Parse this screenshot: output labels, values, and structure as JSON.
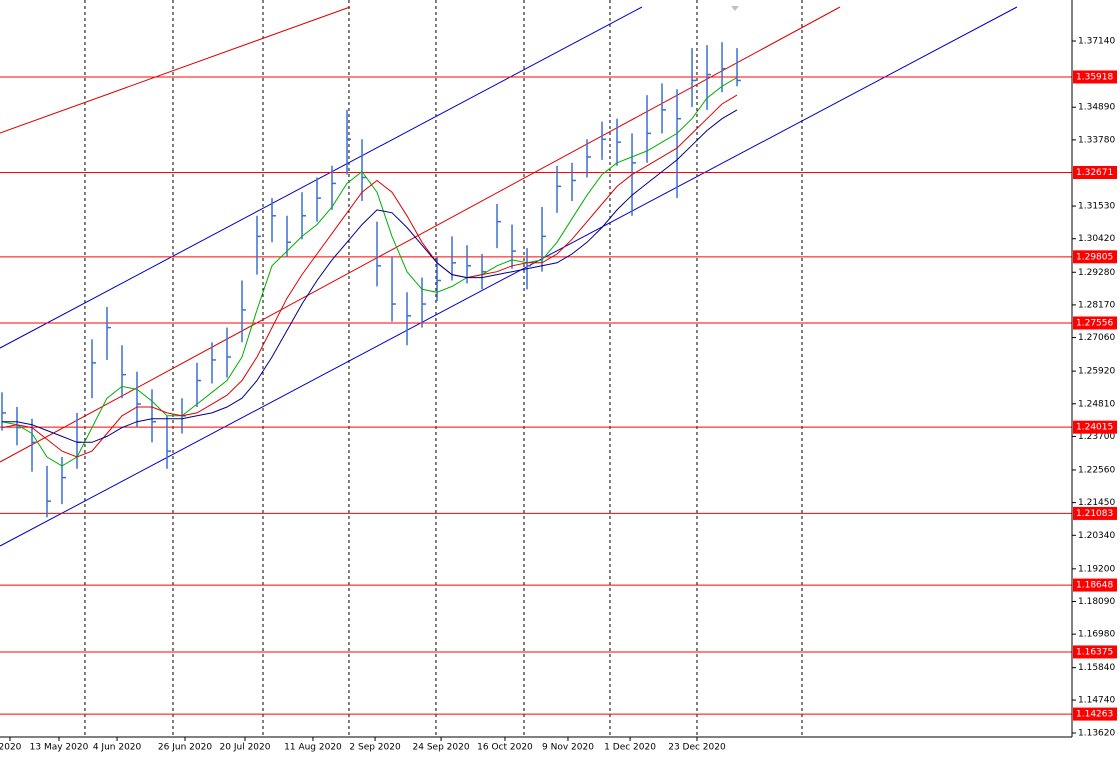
{
  "chart_data": {
    "type": "ohlc",
    "ylim": [
      1.13484,
      1.38534
    ],
    "xlim": [
      -0.133,
      71.33
    ],
    "yticks": [
      {
        "value": 1.3714,
        "label": "1.37140"
      },
      {
        "value": 1.3489,
        "label": "1.34890"
      },
      {
        "value": 1.3378,
        "label": "1.33780"
      },
      {
        "value": 1.3153,
        "label": "1.31530"
      },
      {
        "value": 1.3042,
        "label": "1.30420"
      },
      {
        "value": 1.2928,
        "label": "1.29280"
      },
      {
        "value": 1.2817,
        "label": "1.28170"
      },
      {
        "value": 1.2706,
        "label": "1.27060"
      },
      {
        "value": 1.2592,
        "label": "1.25920"
      },
      {
        "value": 1.2481,
        "label": "1.24810"
      },
      {
        "value": 1.237,
        "label": "1.23700"
      },
      {
        "value": 1.2256,
        "label": "1.22560"
      },
      {
        "value": 1.2145,
        "label": "1.21450"
      },
      {
        "value": 1.2034,
        "label": "1.20340"
      },
      {
        "value": 1.192,
        "label": "1.19200"
      },
      {
        "value": 1.1809,
        "label": "1.18090"
      },
      {
        "value": 1.1698,
        "label": "1.16980"
      },
      {
        "value": 1.1584,
        "label": "1.15840"
      },
      {
        "value": 1.1474,
        "label": "1.14740"
      },
      {
        "value": 1.1362,
        "label": "1.13620"
      }
    ],
    "xticks": [
      {
        "value": 0.53,
        "label": "2020"
      },
      {
        "value": 3.8,
        "label": "13 May 2020"
      },
      {
        "value": 7.67,
        "label": "4 Jun 2020"
      },
      {
        "value": 12.2,
        "label": "26 Jun 2020"
      },
      {
        "value": 16.2,
        "label": "20 Jul 2020"
      },
      {
        "value": 20.73,
        "label": "11 Aug 2020"
      },
      {
        "value": 24.87,
        "label": "2 Sep 2020"
      },
      {
        "value": 29.27,
        "label": "24 Sep 2020"
      },
      {
        "value": 33.53,
        "label": "16 Oct 2020"
      },
      {
        "value": 37.73,
        "label": "9 Nov 2020"
      },
      {
        "value": 41.87,
        "label": "1 Dec 2020"
      },
      {
        "value": 46.33,
        "label": "23 Dec 2020"
      }
    ],
    "xgrid": [
      5.53,
      11.4,
      17.4,
      23.13,
      28.93,
      34.8,
      40.53,
      46.33,
      53.33
    ],
    "bars": {
      "color": "#3b6fd4",
      "high": [
        1.252,
        1.247,
        1.243,
        1.227,
        1.23,
        1.245,
        1.27,
        1.281,
        1.268,
        1.259,
        1.253,
        1.244,
        1.25,
        1.262,
        1.269,
        1.274,
        1.29,
        1.312,
        1.318,
        1.312,
        1.32,
        1.325,
        1.329,
        1.348,
        1.338,
        1.31,
        1.298,
        1.286,
        1.291,
        1.298,
        1.305,
        1.302,
        1.299,
        1.316,
        1.309,
        1.301,
        1.315,
        1.329,
        1.33,
        1.338,
        1.344,
        1.345,
        1.34,
        1.353,
        1.357,
        1.355,
        1.369,
        1.37,
        1.371,
        1.369
      ],
      "low": [
        1.239,
        1.234,
        1.225,
        1.2095,
        1.214,
        1.226,
        1.25,
        1.263,
        1.25,
        1.24,
        1.235,
        1.226,
        1.238,
        1.247,
        1.255,
        1.257,
        1.269,
        1.292,
        1.303,
        1.298,
        1.304,
        1.31,
        1.314,
        1.326,
        1.317,
        1.288,
        1.276,
        1.268,
        1.274,
        1.283,
        1.29,
        1.289,
        1.287,
        1.301,
        1.294,
        1.287,
        1.293,
        1.313,
        1.317,
        1.325,
        1.331,
        1.329,
        1.312,
        1.33,
        1.34,
        1.318,
        1.349,
        1.348,
        1.354,
        1.356
      ],
      "close": [
        1.245,
        1.24,
        1.235,
        1.215,
        1.223,
        1.235,
        1.262,
        1.274,
        1.258,
        1.248,
        1.242,
        1.232,
        1.244,
        1.256,
        1.263,
        1.264,
        1.28,
        1.305,
        1.312,
        1.303,
        1.312,
        1.318,
        1.323,
        1.338,
        1.325,
        1.295,
        1.282,
        1.278,
        1.282,
        1.29,
        1.296,
        1.295,
        1.293,
        1.31,
        1.3,
        1.295,
        1.305,
        1.322,
        1.324,
        1.332,
        1.338,
        1.337,
        1.33,
        1.34,
        1.348,
        1.345,
        1.358,
        1.36,
        1.362,
        1.358
      ]
    },
    "ma_lines": [
      {
        "color": "#00b000",
        "values": [
          1.242,
          1.241,
          1.238,
          1.23,
          1.227,
          1.23,
          1.24,
          1.25,
          1.254,
          1.253,
          1.249,
          1.244,
          1.244,
          1.248,
          1.252,
          1.256,
          1.264,
          1.28,
          1.295,
          1.3,
          1.305,
          1.309,
          1.315,
          1.323,
          1.327,
          1.32,
          1.305,
          1.293,
          1.287,
          1.286,
          1.288,
          1.291,
          1.292,
          1.295,
          1.297,
          1.296,
          1.297,
          1.303,
          1.311,
          1.319,
          1.326,
          1.33,
          1.332,
          1.334,
          1.337,
          1.34,
          1.345,
          1.352,
          1.356,
          1.359
        ]
      },
      {
        "color": "#e00000",
        "values": [
          1.24,
          1.241,
          1.24,
          1.236,
          1.232,
          1.23,
          1.232,
          1.238,
          1.244,
          1.247,
          1.247,
          1.245,
          1.244,
          1.245,
          1.248,
          1.251,
          1.256,
          1.264,
          1.274,
          1.284,
          1.292,
          1.299,
          1.306,
          1.313,
          1.32,
          1.324,
          1.32,
          1.312,
          1.303,
          1.296,
          1.292,
          1.291,
          1.292,
          1.293,
          1.295,
          1.296,
          1.296,
          1.299,
          1.304,
          1.31,
          1.316,
          1.322,
          1.326,
          1.329,
          1.332,
          1.335,
          1.34,
          1.345,
          1.35,
          1.353
        ]
      },
      {
        "color": "#00008b",
        "values": [
          1.242,
          1.242,
          1.241,
          1.239,
          1.237,
          1.235,
          1.235,
          1.237,
          1.24,
          1.242,
          1.243,
          1.243,
          1.243,
          1.244,
          1.245,
          1.247,
          1.25,
          1.256,
          1.264,
          1.273,
          1.282,
          1.29,
          1.297,
          1.303,
          1.309,
          1.314,
          1.313,
          1.308,
          1.302,
          1.296,
          1.292,
          1.291,
          1.291,
          1.292,
          1.293,
          1.294,
          1.295,
          1.296,
          1.299,
          1.303,
          1.308,
          1.314,
          1.319,
          1.323,
          1.327,
          1.331,
          1.336,
          1.341,
          1.345,
          1.348
        ]
      }
    ],
    "levels": {
      "color": "#ff0000",
      "values": [
        1.35918,
        1.32671,
        1.29805,
        1.27556,
        1.24015,
        1.21083,
        1.18648,
        1.16375,
        1.14263
      ]
    }
  }
}
